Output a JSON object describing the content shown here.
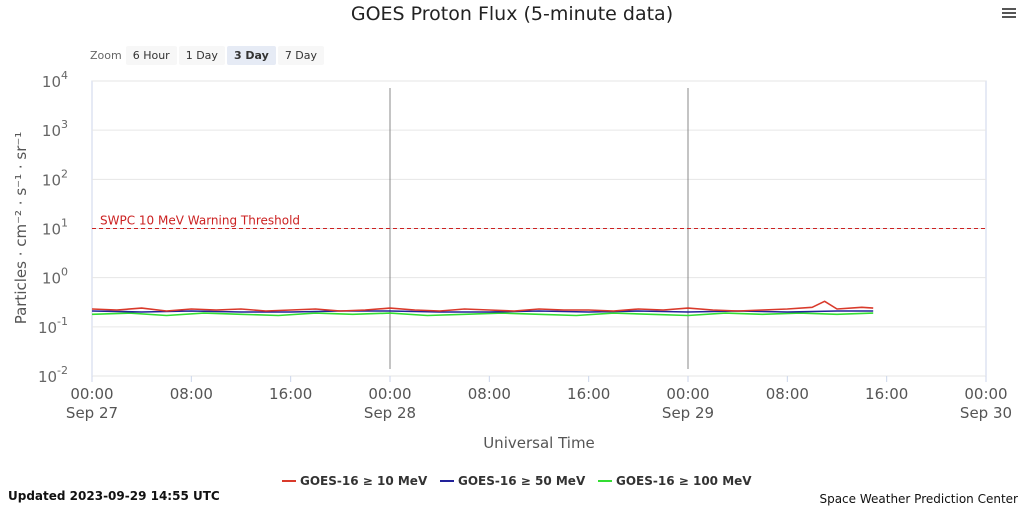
{
  "title": "GOES Proton Flux (5-minute data)",
  "zoom": {
    "label": "Zoom",
    "buttons": [
      "6 Hour",
      "1 Day",
      "3 Day",
      "7 Day"
    ],
    "active": "3 Day"
  },
  "footer": {
    "updated": "Updated 2023-09-29 14:55 UTC",
    "credit": "Space Weather Prediction Center"
  },
  "colors": {
    "s10": "#d93a2b",
    "s50": "#22229a",
    "s100": "#33dd33",
    "threshold": "#cc2222"
  },
  "chart_data": {
    "type": "line",
    "title": "GOES Proton Flux (5-minute data)",
    "xlabel": "Universal Time",
    "ylabel": "Particles · cm⁻² · s⁻¹ · sr⁻¹",
    "y_scale": "log",
    "ylim": [
      0.01,
      10000
    ],
    "y_ticks": [
      {
        "value": 0.01,
        "base": "10",
        "exp": "-2"
      },
      {
        "value": 0.1,
        "base": "10",
        "exp": "-1"
      },
      {
        "value": 1,
        "base": "10",
        "exp": "0"
      },
      {
        "value": 10,
        "base": "10",
        "exp": "1"
      },
      {
        "value": 100,
        "base": "10",
        "exp": "2"
      },
      {
        "value": 1000,
        "base": "10",
        "exp": "3"
      },
      {
        "value": 10000,
        "base": "10",
        "exp": "4"
      }
    ],
    "xlim": [
      "2023-09-27 00:00",
      "2023-09-30 00:00"
    ],
    "x_ticks": [
      {
        "time": "2023-09-27 00:00",
        "label": "00:00",
        "sub": "Sep 27"
      },
      {
        "time": "2023-09-27 08:00",
        "label": "08:00",
        "sub": ""
      },
      {
        "time": "2023-09-27 16:00",
        "label": "16:00",
        "sub": ""
      },
      {
        "time": "2023-09-28 00:00",
        "label": "00:00",
        "sub": "Sep 28"
      },
      {
        "time": "2023-09-28 08:00",
        "label": "08:00",
        "sub": ""
      },
      {
        "time": "2023-09-28 16:00",
        "label": "16:00",
        "sub": ""
      },
      {
        "time": "2023-09-29 00:00",
        "label": "00:00",
        "sub": "Sep 29"
      },
      {
        "time": "2023-09-29 08:00",
        "label": "08:00",
        "sub": ""
      },
      {
        "time": "2023-09-29 16:00",
        "label": "16:00",
        "sub": ""
      },
      {
        "time": "2023-09-30 00:00",
        "label": "00:00",
        "sub": "Sep 30"
      }
    ],
    "day_lines": [
      "2023-09-28 00:00",
      "2023-09-29 00:00"
    ],
    "threshold": {
      "value": 10,
      "label": "SWPC 10 MeV Warning Threshold"
    },
    "grid": true,
    "legend_position": "bottom-center",
    "series": [
      {
        "name": "GOES-16 ≥ 10 MeV",
        "color": "#d93a2b",
        "x": [
          "2023-09-27 00:00",
          "2023-09-27 02:00",
          "2023-09-27 04:00",
          "2023-09-27 06:00",
          "2023-09-27 08:00",
          "2023-09-27 10:00",
          "2023-09-27 12:00",
          "2023-09-27 14:00",
          "2023-09-27 16:00",
          "2023-09-27 18:00",
          "2023-09-27 20:00",
          "2023-09-27 22:00",
          "2023-09-28 00:00",
          "2023-09-28 02:00",
          "2023-09-28 04:00",
          "2023-09-28 06:00",
          "2023-09-28 08:00",
          "2023-09-28 10:00",
          "2023-09-28 12:00",
          "2023-09-28 14:00",
          "2023-09-28 16:00",
          "2023-09-28 18:00",
          "2023-09-28 20:00",
          "2023-09-28 22:00",
          "2023-09-29 00:00",
          "2023-09-29 02:00",
          "2023-09-29 04:00",
          "2023-09-29 06:00",
          "2023-09-29 08:00",
          "2023-09-29 10:00",
          "2023-09-29 11:00",
          "2023-09-29 12:00",
          "2023-09-29 14:00",
          "2023-09-29 14:55"
        ],
        "y": [
          0.23,
          0.22,
          0.24,
          0.21,
          0.23,
          0.22,
          0.23,
          0.21,
          0.22,
          0.23,
          0.21,
          0.22,
          0.24,
          0.22,
          0.21,
          0.23,
          0.22,
          0.21,
          0.23,
          0.22,
          0.22,
          0.21,
          0.23,
          0.22,
          0.24,
          0.22,
          0.21,
          0.22,
          0.23,
          0.25,
          0.33,
          0.23,
          0.25,
          0.24
        ]
      },
      {
        "name": "GOES-16 ≥ 50 MeV",
        "color": "#22229a",
        "x": [
          "2023-09-27 00:00",
          "2023-09-27 04:00",
          "2023-09-27 08:00",
          "2023-09-27 12:00",
          "2023-09-27 16:00",
          "2023-09-27 20:00",
          "2023-09-28 00:00",
          "2023-09-28 04:00",
          "2023-09-28 08:00",
          "2023-09-28 12:00",
          "2023-09-28 16:00",
          "2023-09-28 20:00",
          "2023-09-29 00:00",
          "2023-09-29 04:00",
          "2023-09-29 08:00",
          "2023-09-29 12:00",
          "2023-09-29 14:55"
        ],
        "y": [
          0.21,
          0.2,
          0.21,
          0.2,
          0.2,
          0.21,
          0.21,
          0.2,
          0.2,
          0.21,
          0.2,
          0.21,
          0.2,
          0.21,
          0.2,
          0.21,
          0.21
        ]
      },
      {
        "name": "GOES-16 ≥ 100 MeV",
        "color": "#33dd33",
        "x": [
          "2023-09-27 00:00",
          "2023-09-27 03:00",
          "2023-09-27 06:00",
          "2023-09-27 09:00",
          "2023-09-27 12:00",
          "2023-09-27 15:00",
          "2023-09-27 18:00",
          "2023-09-27 21:00",
          "2023-09-28 00:00",
          "2023-09-28 03:00",
          "2023-09-28 06:00",
          "2023-09-28 09:00",
          "2023-09-28 12:00",
          "2023-09-28 15:00",
          "2023-09-28 18:00",
          "2023-09-28 21:00",
          "2023-09-29 00:00",
          "2023-09-29 03:00",
          "2023-09-29 06:00",
          "2023-09-29 09:00",
          "2023-09-29 12:00",
          "2023-09-29 14:55"
        ],
        "y": [
          0.18,
          0.19,
          0.17,
          0.19,
          0.18,
          0.17,
          0.19,
          0.18,
          0.19,
          0.17,
          0.18,
          0.19,
          0.18,
          0.17,
          0.19,
          0.18,
          0.17,
          0.19,
          0.18,
          0.19,
          0.18,
          0.19
        ]
      }
    ]
  }
}
